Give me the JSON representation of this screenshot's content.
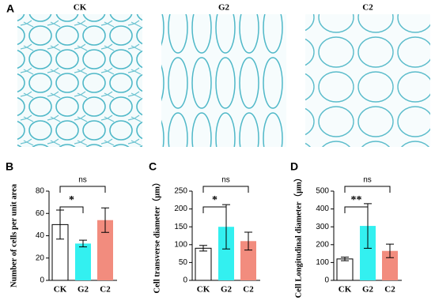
{
  "panel_a": {
    "label": "A",
    "images": [
      "CK",
      "G2",
      "C2"
    ]
  },
  "chart_data": [
    {
      "label": "B",
      "type": "bar",
      "ylabel": "Number of cells per unit area",
      "categories": [
        "CK",
        "G2",
        "C2"
      ],
      "series": [
        {
          "values": [
            50,
            33,
            54
          ],
          "errors": [
            13,
            3,
            11
          ],
          "colors": [
            "#ffffff",
            "#33f0f0",
            "#f28c7e"
          ]
        }
      ],
      "ylim": [
        0,
        80
      ],
      "yticks": [
        0,
        20,
        40,
        60,
        80
      ],
      "annotations": [
        "*",
        "ns"
      ]
    },
    {
      "label": "C",
      "type": "bar",
      "ylabel": "Cell transverse diameter（μm）",
      "categories": [
        "CK",
        "G2",
        "C2"
      ],
      "series": [
        {
          "values": [
            90,
            150,
            110
          ],
          "errors": [
            8,
            62,
            25
          ],
          "colors": [
            "#ffffff",
            "#33f0f0",
            "#f28c7e"
          ]
        }
      ],
      "ylim": [
        0,
        250
      ],
      "yticks": [
        0,
        50,
        100,
        150,
        200,
        250
      ],
      "annotations": [
        "*",
        "ns"
      ]
    },
    {
      "label": "D",
      "type": "bar",
      "ylabel": "Cell Longitudinal diameter（μm）",
      "categories": [
        "CK",
        "G2",
        "C2"
      ],
      "series": [
        {
          "values": [
            120,
            305,
            165
          ],
          "errors": [
            10,
            125,
            38
          ],
          "colors": [
            "#ffffff",
            "#33f0f0",
            "#f28c7e"
          ]
        }
      ],
      "ylim": [
        0,
        500
      ],
      "yticks": [
        0,
        100,
        200,
        300,
        400,
        500
      ],
      "annotations": [
        "**",
        "ns"
      ]
    }
  ]
}
